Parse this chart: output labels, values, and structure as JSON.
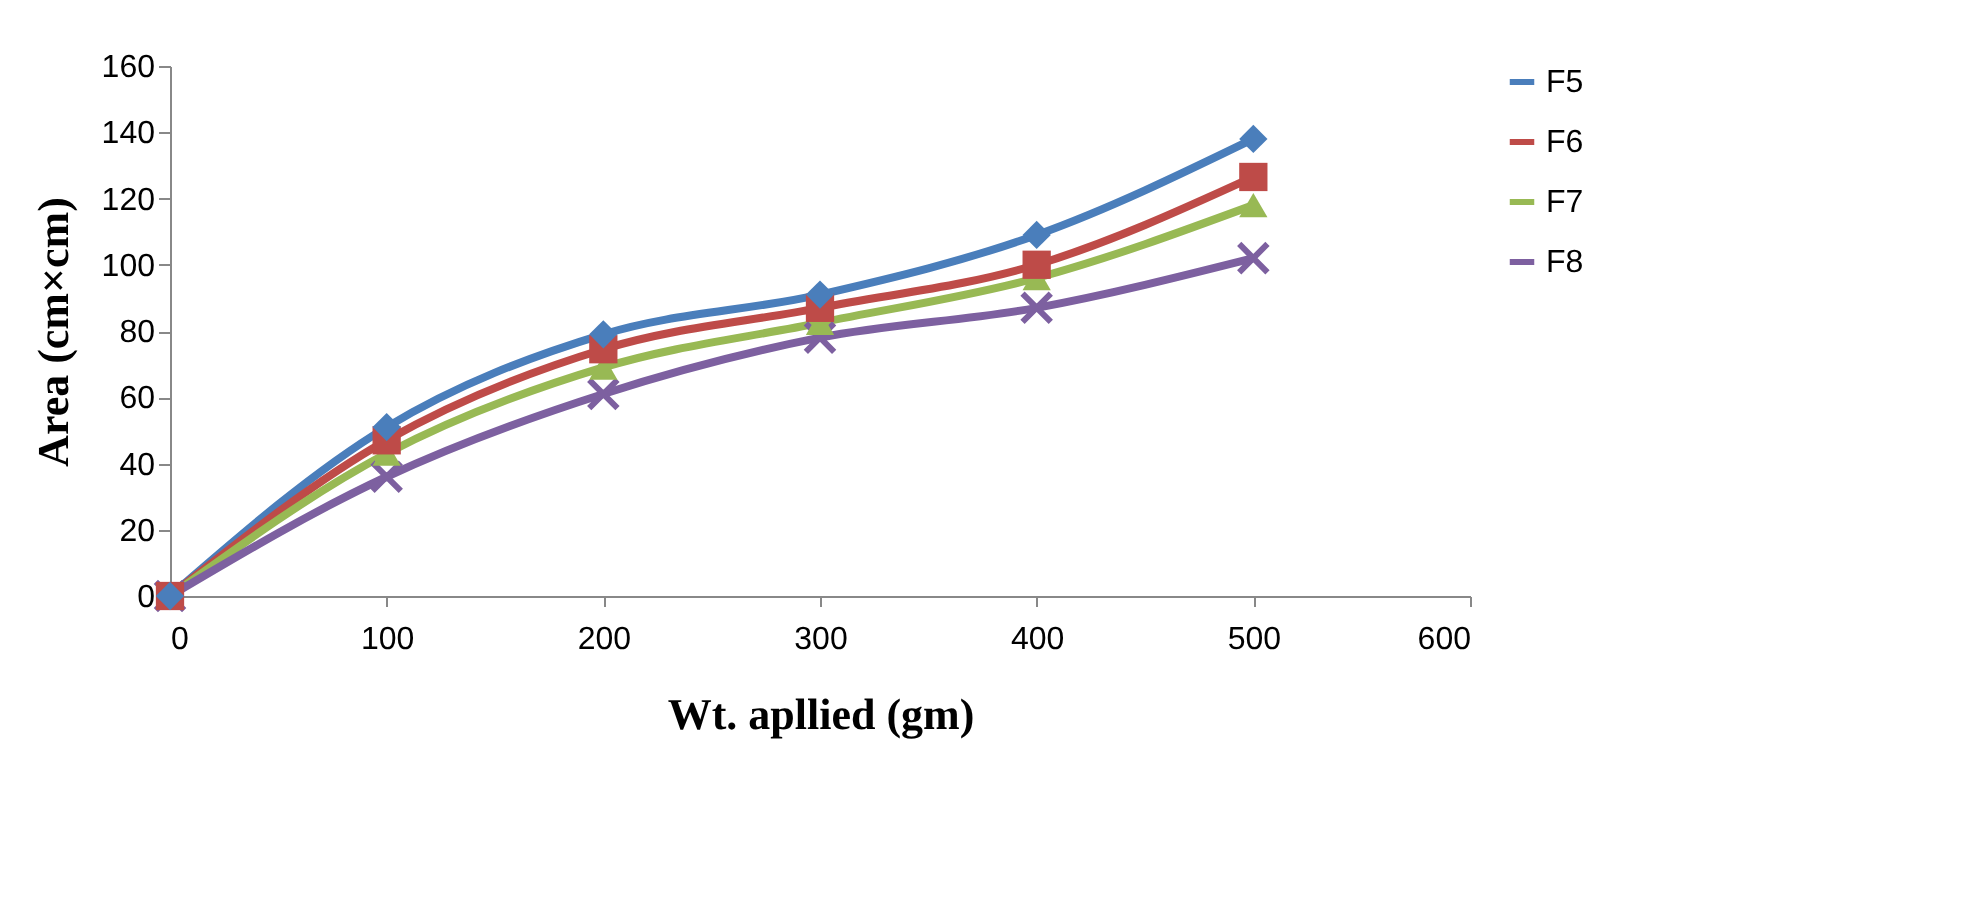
{
  "chart_data": {
    "type": "line",
    "xlabel": "Wt. apllied (gm)",
    "ylabel": "Area (cm×cm)",
    "x": [
      0,
      100,
      200,
      300,
      400,
      500
    ],
    "series": [
      {
        "name": "F5",
        "color": "#4a7ebb",
        "marker": "diamond",
        "values": [
          0,
          51,
          79,
          91,
          109,
          138
        ]
      },
      {
        "name": "F6",
        "color": "#be4b48",
        "marker": "square",
        "values": [
          0,
          47,
          74.5,
          87,
          100,
          126.5
        ]
      },
      {
        "name": "F7",
        "color": "#98b954",
        "marker": "triangle",
        "values": [
          0,
          43,
          69,
          82.5,
          96,
          118
        ]
      },
      {
        "name": "F8",
        "color": "#7d60a0",
        "marker": "cross",
        "values": [
          0,
          36,
          61,
          78,
          87,
          102
        ]
      }
    ],
    "xlim": [
      0,
      600
    ],
    "xticks": [
      0,
      100,
      200,
      300,
      400,
      500,
      600
    ],
    "ylim": [
      0,
      160
    ],
    "yticks": [
      0,
      20,
      40,
      60,
      80,
      100,
      120,
      140,
      160
    ],
    "grid": false,
    "legend": "right",
    "line_style": "solid"
  }
}
